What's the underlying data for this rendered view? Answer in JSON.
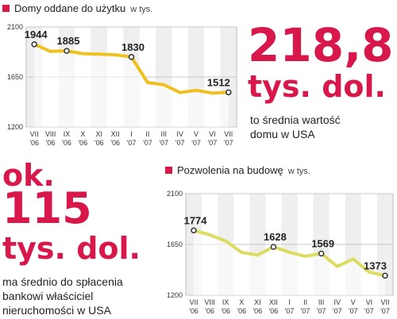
{
  "colors": {
    "accent": "#d8184a",
    "line": "#f0c020",
    "line2": "#dcdc60",
    "grid": "#d0d0d0"
  },
  "big1": {
    "value": "218,8",
    "unit": "tys. dol.",
    "caption_lines": [
      "to średnia wartość",
      "domu w USA"
    ]
  },
  "big2": {
    "prefix": "ok.",
    "value": "115",
    "unit": "tys. dol.",
    "caption_lines": [
      "ma średnio do spłacenia",
      "bankowi właściciel",
      "nieruchomości w USA"
    ]
  },
  "chart_data": [
    {
      "type": "line",
      "title": "Domy oddane do użytku",
      "unit": "w tys.",
      "categories": [
        "VII '06",
        "VIII '06",
        "IX '06",
        "X '06",
        "XI '06",
        "XII '06",
        "I '07",
        "II '07",
        "III '07",
        "IV '07",
        "V '07",
        "VI '07",
        "VII '07"
      ],
      "x_labels_top": [
        "VII",
        "VIII",
        "IX",
        "X",
        "XI",
        "XII",
        "I",
        "II",
        "III",
        "IV",
        "V",
        "VI",
        "VII"
      ],
      "x_labels_bottom": [
        "'06",
        "'06",
        "'06",
        "'06",
        "'06",
        "'06",
        "'07",
        "'07",
        "'07",
        "'07",
        "'07",
        "'07",
        "'07"
      ],
      "values": [
        1944,
        1880,
        1885,
        1860,
        1855,
        1850,
        1830,
        1600,
        1580,
        1510,
        1530,
        1505,
        1512
      ],
      "data_labels": [
        {
          "index": 0,
          "text": "1944"
        },
        {
          "index": 2,
          "text": "1885"
        },
        {
          "index": 6,
          "text": "1830"
        },
        {
          "index": 12,
          "text": "1512"
        }
      ],
      "yticks": [
        1200,
        1650,
        2100
      ],
      "ylim": [
        1200,
        2100
      ],
      "grid": true
    },
    {
      "type": "line",
      "title": "Pozwolenia na budowę",
      "unit": "w tys.",
      "categories": [
        "VII '06",
        "VIII '06",
        "IX '06",
        "X '06",
        "XI '06",
        "XII '06",
        "I '07",
        "II '07",
        "III '07",
        "IV '07",
        "V '07",
        "VI '07",
        "VII '07"
      ],
      "x_labels_top": [
        "VII",
        "VIII",
        "IX",
        "X",
        "XI",
        "XII",
        "I",
        "II",
        "III",
        "IV",
        "V",
        "VI",
        "VII"
      ],
      "x_labels_bottom": [
        "'06",
        "'06",
        "'06",
        "'06",
        "'06",
        "'06",
        "'07",
        "'07",
        "'07",
        "'07",
        "'07",
        "'07",
        "'07"
      ],
      "values": [
        1774,
        1735,
        1680,
        1580,
        1555,
        1628,
        1580,
        1545,
        1569,
        1455,
        1520,
        1405,
        1373
      ],
      "data_labels": [
        {
          "index": 0,
          "text": "1774"
        },
        {
          "index": 5,
          "text": "1628"
        },
        {
          "index": 8,
          "text": "1569"
        },
        {
          "index": 12,
          "text": "1373"
        }
      ],
      "yticks": [
        1200,
        1650,
        2100
      ],
      "ylim": [
        1200,
        2100
      ],
      "grid": true
    }
  ]
}
